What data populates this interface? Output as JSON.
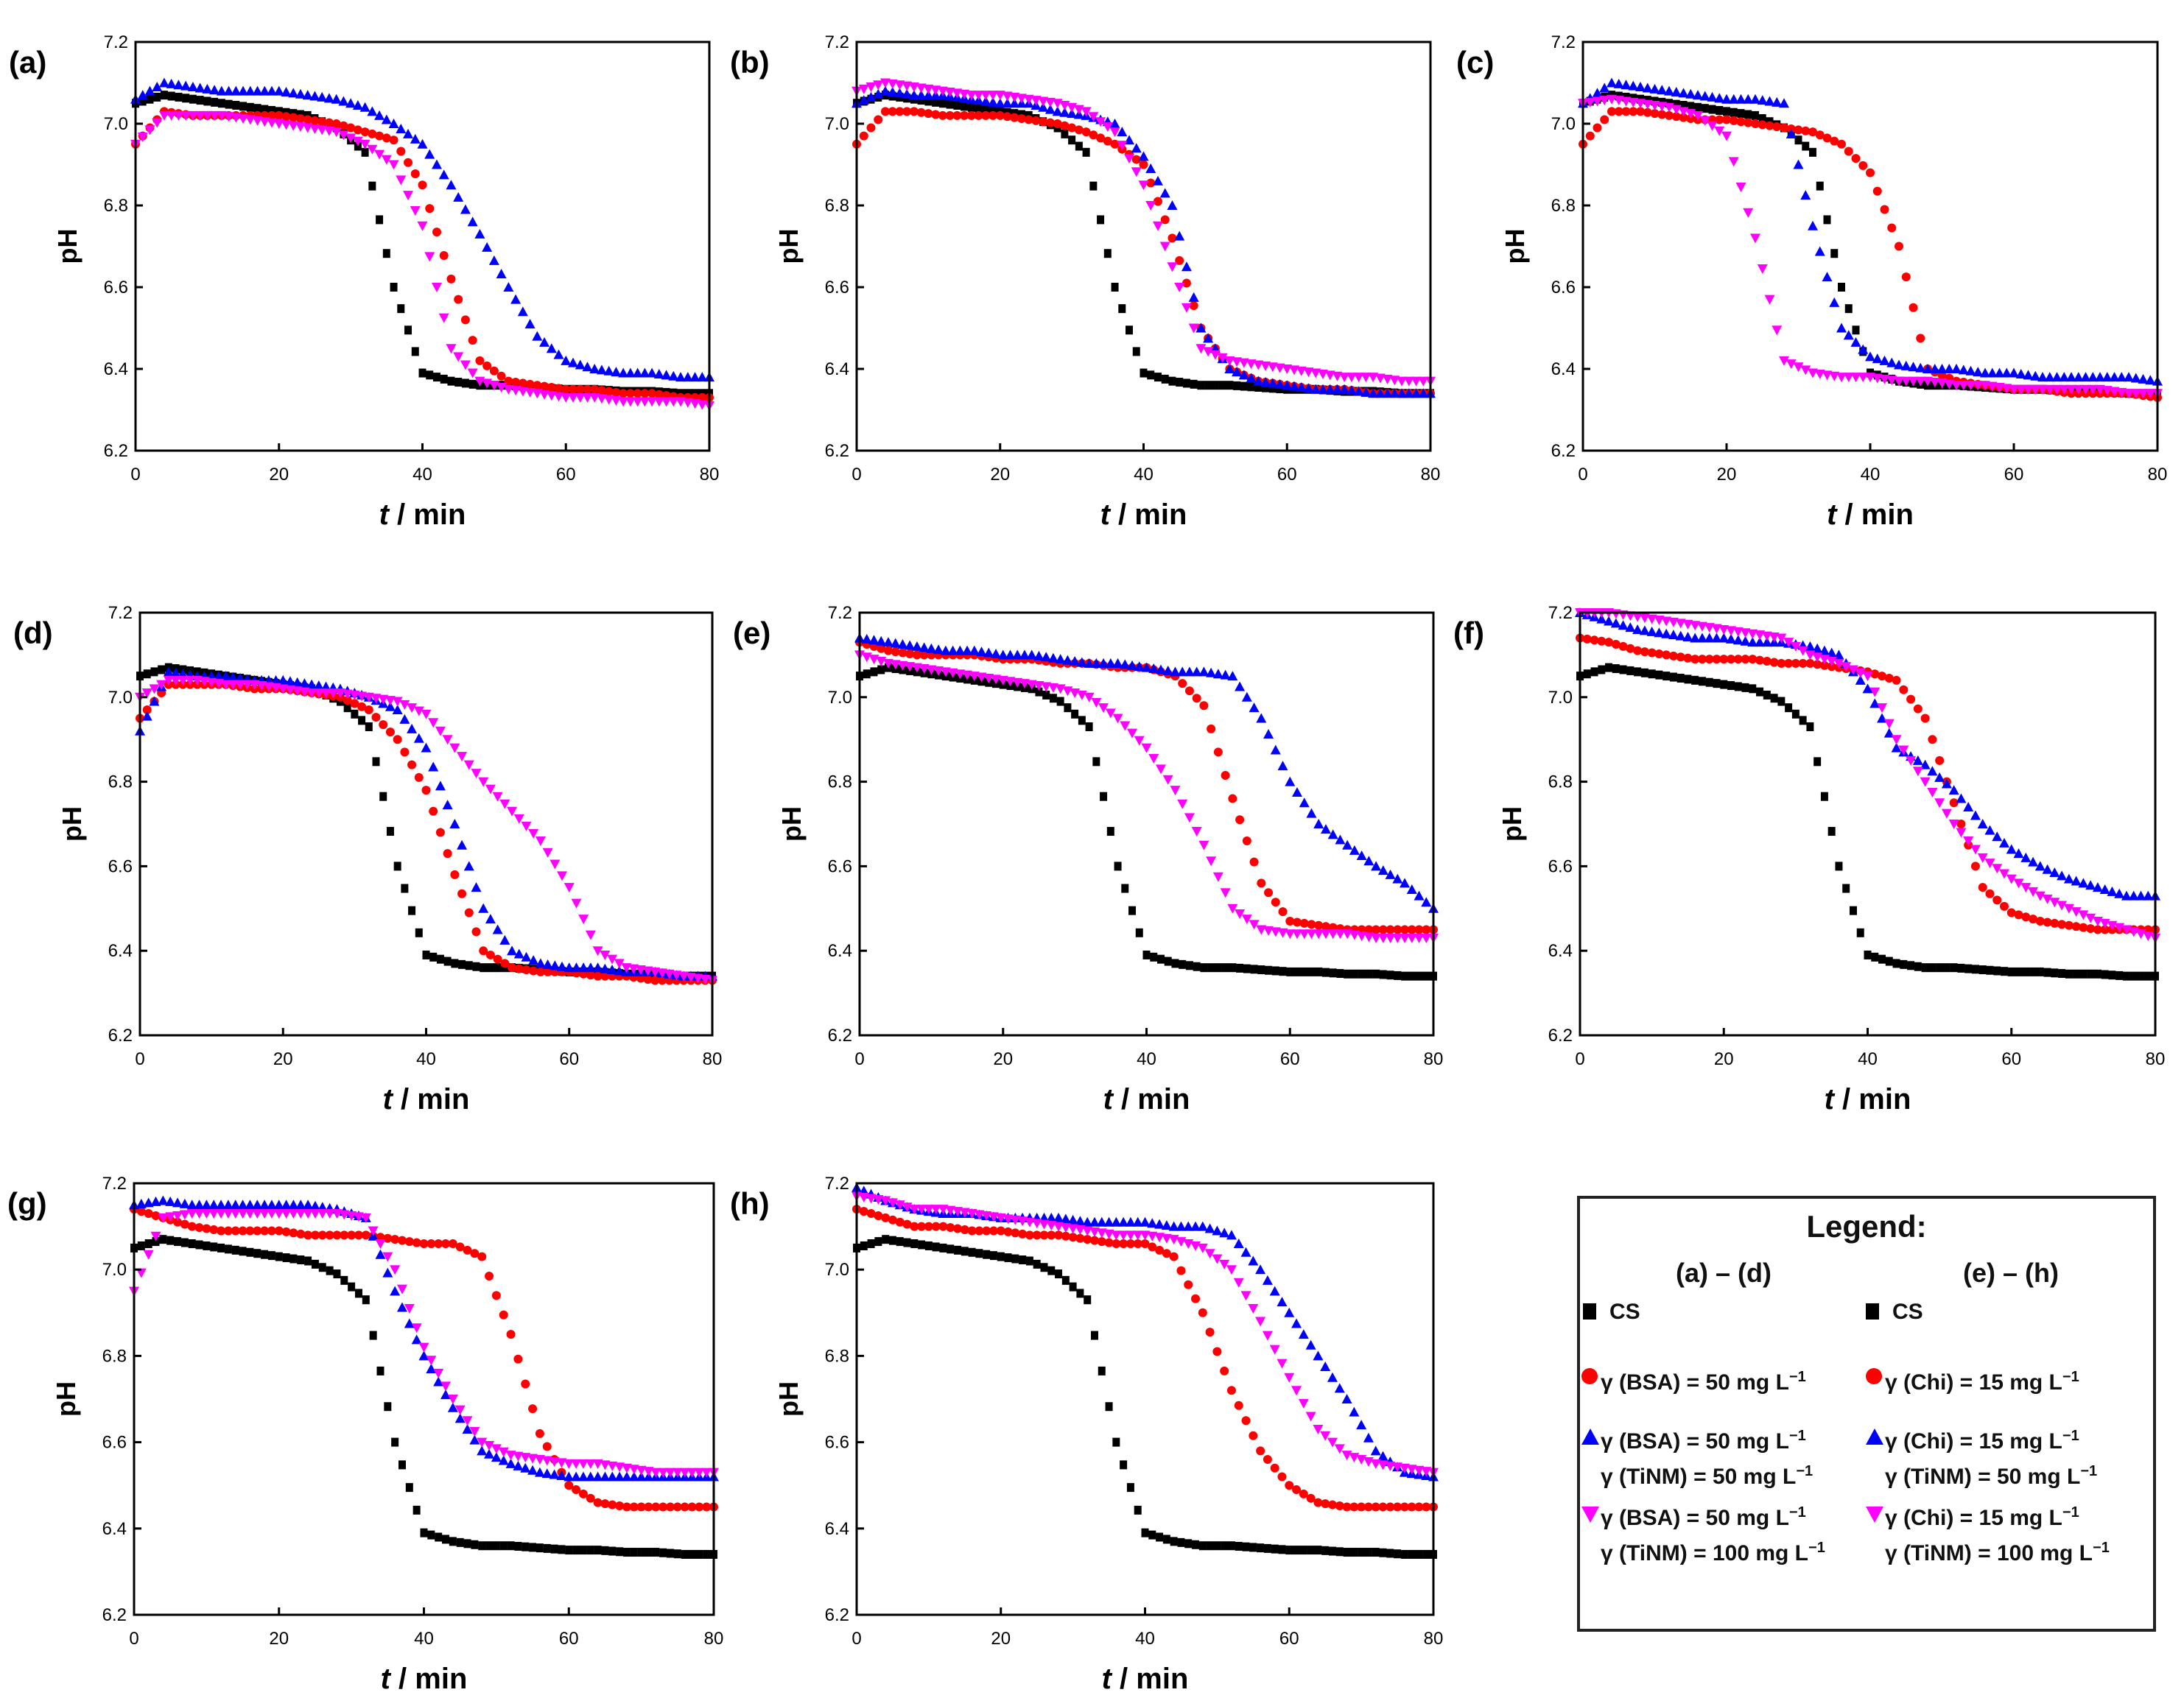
{
  "chart_data": {
    "type": "scatter",
    "x": [
      0,
      4,
      8,
      12,
      16,
      20,
      24,
      28,
      32,
      36,
      40,
      44,
      48,
      52,
      56,
      60,
      64,
      68,
      72,
      76,
      80
    ],
    "xlim": [
      0,
      80
    ],
    "ylim": [
      6.2,
      7.2
    ],
    "xticks": [
      "0",
      "20",
      "40",
      "60",
      "80"
    ],
    "yticks": [
      "6.2",
      "6.4",
      "6.6",
      "6.8",
      "7.0",
      "7.2"
    ],
    "xlabel_t": "t",
    "xlabel_rest": " / min",
    "ylabel": "pH",
    "series_colors": [
      "#000000",
      "#ff0000",
      "#0000ff",
      "#ff00ff"
    ],
    "series_markers": [
      "square",
      "circle",
      "triangle-up",
      "triangle-down"
    ],
    "panels": [
      {
        "label": "(a)",
        "series": [
          [
            7.05,
            7.07,
            7.06,
            7.05,
            7.04,
            7.03,
            7.02,
            6.99,
            6.93,
            6.6,
            6.39,
            6.37,
            6.36,
            6.36,
            6.355,
            6.35,
            6.35,
            6.345,
            6.345,
            6.34,
            6.34
          ],
          [
            6.95,
            7.03,
            7.02,
            7.02,
            7.02,
            7.02,
            7.01,
            7.0,
            6.98,
            6.96,
            6.85,
            6.62,
            6.42,
            6.37,
            6.36,
            6.35,
            6.35,
            6.34,
            6.34,
            6.33,
            6.33
          ],
          [
            7.06,
            7.1,
            7.09,
            7.08,
            7.08,
            7.08,
            7.07,
            7.06,
            7.04,
            7.0,
            6.95,
            6.85,
            6.73,
            6.6,
            6.48,
            6.42,
            6.4,
            6.39,
            6.39,
            6.38,
            6.38
          ],
          [
            6.95,
            7.02,
            7.02,
            7.02,
            7.01,
            7.0,
            6.99,
            6.98,
            6.95,
            6.9,
            6.75,
            6.45,
            6.37,
            6.35,
            6.34,
            6.33,
            6.33,
            6.32,
            6.32,
            6.32,
            6.31
          ]
        ]
      },
      {
        "label": "(b)",
        "series": [
          [
            7.05,
            7.07,
            7.06,
            7.05,
            7.04,
            7.03,
            7.02,
            6.99,
            6.93,
            6.6,
            6.39,
            6.37,
            6.36,
            6.36,
            6.355,
            6.35,
            6.35,
            6.345,
            6.345,
            6.34,
            6.34
          ],
          [
            6.95,
            7.03,
            7.03,
            7.02,
            7.02,
            7.02,
            7.01,
            7.0,
            6.98,
            6.95,
            6.9,
            6.72,
            6.5,
            6.4,
            6.37,
            6.36,
            6.35,
            6.35,
            6.34,
            6.34,
            6.34
          ],
          [
            7.05,
            7.08,
            7.07,
            7.07,
            7.06,
            7.05,
            7.05,
            7.03,
            7.02,
            7.0,
            6.92,
            6.8,
            6.5,
            6.4,
            6.37,
            6.36,
            6.35,
            6.35,
            6.34,
            6.34,
            6.34
          ],
          [
            7.08,
            7.1,
            7.09,
            7.08,
            7.07,
            7.07,
            7.06,
            7.05,
            7.03,
            6.98,
            6.85,
            6.65,
            6.45,
            6.42,
            6.41,
            6.4,
            6.39,
            6.38,
            6.38,
            6.37,
            6.37
          ]
        ]
      },
      {
        "label": "(c)",
        "series": [
          [
            7.05,
            7.07,
            7.06,
            7.05,
            7.04,
            7.03,
            7.02,
            6.99,
            6.93,
            6.6,
            6.39,
            6.37,
            6.36,
            6.36,
            6.355,
            6.35,
            6.35,
            6.345,
            6.345,
            6.34,
            6.34
          ],
          [
            6.95,
            7.03,
            7.03,
            7.02,
            7.01,
            7.01,
            7.0,
            6.99,
            6.98,
            6.95,
            6.88,
            6.7,
            6.4,
            6.37,
            6.36,
            6.35,
            6.35,
            6.34,
            6.34,
            6.34,
            6.33
          ],
          [
            7.05,
            7.1,
            7.09,
            7.08,
            7.07,
            7.06,
            7.06,
            7.05,
            6.75,
            6.5,
            6.43,
            6.41,
            6.4,
            6.4,
            6.39,
            6.39,
            6.38,
            6.38,
            6.38,
            6.38,
            6.37
          ],
          [
            7.05,
            7.06,
            7.05,
            7.04,
            7.02,
            6.97,
            6.72,
            6.42,
            6.39,
            6.38,
            6.38,
            6.37,
            6.37,
            6.36,
            6.36,
            6.35,
            6.35,
            6.35,
            6.35,
            6.34,
            6.34
          ]
        ]
      },
      {
        "label": "(d)",
        "series": [
          [
            7.05,
            7.07,
            7.06,
            7.05,
            7.04,
            7.03,
            7.02,
            6.99,
            6.93,
            6.6,
            6.39,
            6.37,
            6.36,
            6.36,
            6.355,
            6.35,
            6.35,
            6.345,
            6.345,
            6.34,
            6.34
          ],
          [
            6.95,
            7.03,
            7.03,
            7.03,
            7.02,
            7.02,
            7.01,
            7.0,
            6.97,
            6.9,
            6.78,
            6.58,
            6.4,
            6.36,
            6.35,
            6.35,
            6.34,
            6.34,
            6.33,
            6.33,
            6.33
          ],
          [
            6.92,
            7.06,
            7.05,
            7.05,
            7.04,
            7.04,
            7.03,
            7.02,
            7.0,
            6.97,
            6.88,
            6.7,
            6.5,
            6.4,
            6.37,
            6.36,
            6.36,
            6.35,
            6.35,
            6.34,
            6.34
          ],
          [
            7.0,
            7.04,
            7.04,
            7.03,
            7.03,
            7.02,
            7.01,
            7.01,
            7.0,
            6.99,
            6.96,
            6.88,
            6.8,
            6.73,
            6.66,
            6.55,
            6.4,
            6.36,
            6.35,
            6.34,
            6.33
          ]
        ]
      },
      {
        "label": "(e)",
        "series": [
          [
            7.05,
            7.07,
            7.06,
            7.05,
            7.04,
            7.03,
            7.02,
            6.99,
            6.93,
            6.6,
            6.39,
            6.37,
            6.36,
            6.36,
            6.355,
            6.35,
            6.35,
            6.345,
            6.345,
            6.34,
            6.34
          ],
          [
            7.13,
            7.11,
            7.1,
            7.1,
            7.1,
            7.09,
            7.09,
            7.08,
            7.08,
            7.07,
            7.07,
            7.05,
            6.98,
            6.76,
            6.56,
            6.47,
            6.46,
            6.45,
            6.45,
            6.45,
            6.45
          ],
          [
            7.14,
            7.13,
            7.12,
            7.11,
            7.11,
            7.1,
            7.1,
            7.09,
            7.08,
            7.08,
            7.07,
            7.06,
            7.06,
            7.05,
            6.95,
            6.8,
            6.7,
            6.65,
            6.6,
            6.56,
            6.5
          ],
          [
            7.1,
            7.08,
            7.07,
            7.06,
            7.05,
            7.04,
            7.03,
            7.02,
            7.0,
            6.95,
            6.88,
            6.78,
            6.65,
            6.5,
            6.45,
            6.44,
            6.44,
            6.44,
            6.43,
            6.43,
            6.43
          ]
        ]
      },
      {
        "label": "(f)",
        "series": [
          [
            7.05,
            7.07,
            7.06,
            7.05,
            7.04,
            7.03,
            7.02,
            6.99,
            6.93,
            6.6,
            6.39,
            6.37,
            6.36,
            6.36,
            6.355,
            6.35,
            6.35,
            6.345,
            6.345,
            6.34,
            6.34
          ],
          [
            7.14,
            7.13,
            7.11,
            7.1,
            7.09,
            7.09,
            7.09,
            7.08,
            7.08,
            7.07,
            7.06,
            7.04,
            6.95,
            6.75,
            6.55,
            6.49,
            6.47,
            6.46,
            6.45,
            6.45,
            6.45
          ],
          [
            7.2,
            7.18,
            7.16,
            7.15,
            7.14,
            7.14,
            7.13,
            7.13,
            7.12,
            7.1,
            7.02,
            6.88,
            6.84,
            6.78,
            6.7,
            6.64,
            6.6,
            6.57,
            6.55,
            6.53,
            6.53
          ],
          [
            7.2,
            7.2,
            7.19,
            7.18,
            7.17,
            7.16,
            7.15,
            7.14,
            7.1,
            7.08,
            7.05,
            6.9,
            6.8,
            6.7,
            6.62,
            6.57,
            6.53,
            6.5,
            6.47,
            6.45,
            6.43
          ]
        ]
      },
      {
        "label": "(g)",
        "series": [
          [
            7.05,
            7.07,
            7.06,
            7.05,
            7.04,
            7.03,
            7.02,
            6.99,
            6.93,
            6.6,
            6.39,
            6.37,
            6.36,
            6.36,
            6.355,
            6.35,
            6.35,
            6.345,
            6.345,
            6.34,
            6.34
          ],
          [
            7.14,
            7.12,
            7.1,
            7.09,
            7.09,
            7.09,
            7.08,
            7.08,
            7.08,
            7.07,
            7.06,
            7.06,
            7.03,
            6.85,
            6.62,
            6.5,
            6.46,
            6.45,
            6.45,
            6.45,
            6.45
          ],
          [
            7.15,
            7.16,
            7.15,
            7.15,
            7.15,
            7.15,
            7.15,
            7.14,
            7.12,
            6.95,
            6.8,
            6.68,
            6.58,
            6.55,
            6.53,
            6.52,
            6.52,
            6.52,
            6.52,
            6.52,
            6.52
          ],
          [
            6.95,
            7.12,
            7.13,
            7.13,
            7.13,
            7.13,
            7.13,
            7.13,
            7.12,
            7.0,
            6.82,
            6.7,
            6.6,
            6.57,
            6.56,
            6.55,
            6.55,
            6.54,
            6.53,
            6.53,
            6.53
          ]
        ]
      },
      {
        "label": "(h)",
        "series": [
          [
            7.05,
            7.07,
            7.06,
            7.05,
            7.04,
            7.03,
            7.02,
            6.99,
            6.93,
            6.6,
            6.39,
            6.37,
            6.36,
            6.36,
            6.355,
            6.35,
            6.35,
            6.345,
            6.345,
            6.34,
            6.34
          ],
          [
            7.14,
            7.12,
            7.1,
            7.1,
            7.09,
            7.09,
            7.08,
            7.08,
            7.07,
            7.06,
            7.06,
            7.03,
            6.9,
            6.72,
            6.58,
            6.5,
            6.46,
            6.45,
            6.45,
            6.45,
            6.45
          ],
          [
            7.19,
            7.16,
            7.14,
            7.13,
            7.13,
            7.12,
            7.12,
            7.12,
            7.11,
            7.11,
            7.11,
            7.1,
            7.1,
            7.08,
            7.0,
            6.9,
            6.8,
            6.7,
            6.58,
            6.53,
            6.52
          ],
          [
            7.17,
            7.16,
            7.14,
            7.14,
            7.13,
            7.12,
            7.11,
            7.1,
            7.09,
            7.08,
            7.08,
            7.07,
            7.05,
            7.0,
            6.88,
            6.75,
            6.63,
            6.57,
            6.55,
            6.54,
            6.53
          ]
        ]
      }
    ]
  },
  "legend": {
    "title": "Legend:",
    "col1_header": "(a) – (d)",
    "col2_header": "(e) – (h)",
    "col1": [
      "CS",
      "γ (BSA) = 50 mg L",
      "γ (BSA) = 50 mg L",
      "γ (TiNM) = 50 mg L",
      "γ (BSA) = 50 mg L",
      "γ (TiNM) = 100 mg L"
    ],
    "col2": [
      "CS",
      "γ (Chi) = 15 mg L",
      "γ (Chi) = 15 mg L",
      "γ (TiNM) = 50 mg L",
      "γ (Chi) = 15 mg L",
      "γ (TiNM) = 100 mg L"
    ],
    "unit_sup": "−1"
  }
}
